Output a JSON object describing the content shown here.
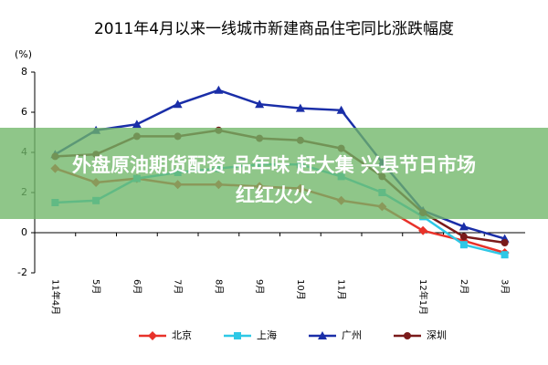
{
  "chart_data": {
    "type": "line",
    "title": "2011年4月以来一线城市新建商品住宅同比涨跌幅度",
    "y_label": "(%)",
    "categories": [
      "11年4月",
      "5月",
      "6月",
      "7月",
      "8月",
      "9月",
      "10月",
      "11月",
      null,
      "12年1月",
      "2月",
      "3月"
    ],
    "series": [
      {
        "name": "北京",
        "color": "#e8322a",
        "marker": "diamond",
        "values": [
          3.2,
          2.5,
          2.7,
          2.4,
          2.4,
          2.3,
          2.2,
          1.6,
          1.3,
          0.1,
          -0.4,
          -1.0
        ]
      },
      {
        "name": "上海",
        "color": "#2ec8e6",
        "marker": "square",
        "values": [
          1.5,
          1.6,
          2.7,
          3.0,
          3.2,
          3.4,
          3.4,
          2.8,
          2.0,
          0.8,
          -0.6,
          -1.1
        ]
      },
      {
        "name": "广州",
        "color": "#1a2ea8",
        "marker": "triangle",
        "values": [
          3.9,
          5.1,
          5.4,
          6.4,
          7.1,
          6.4,
          6.2,
          6.1,
          3.5,
          1.1,
          0.3,
          -0.3
        ]
      },
      {
        "name": "深圳",
        "color": "#7a1a1a",
        "marker": "circle",
        "values": [
          3.8,
          3.9,
          4.8,
          4.8,
          5.1,
          4.7,
          4.6,
          4.2,
          2.8,
          1.0,
          -0.2,
          -0.5
        ]
      }
    ],
    "ylim": [
      -2,
      8
    ],
    "yticks": [
      -2,
      0,
      2,
      4,
      6,
      8
    ],
    "legend": "bottom"
  },
  "overlay": {
    "lines": [
      "外盘原油期货配资 品年味 赶大集 兴县节日市场",
      "红红火火"
    ]
  }
}
